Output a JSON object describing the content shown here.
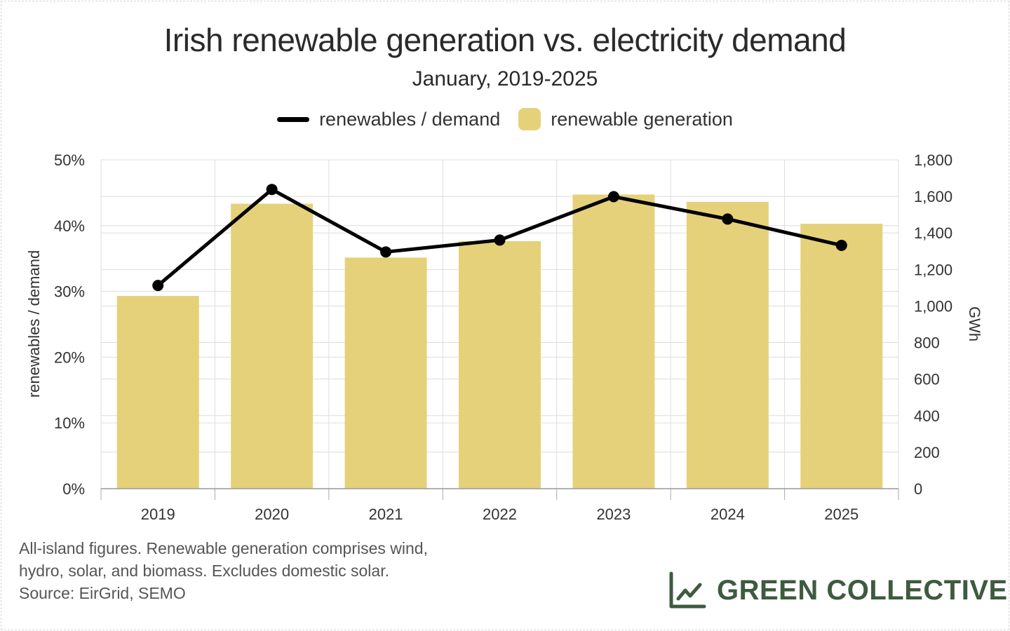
{
  "title": "Irish renewable generation vs. electricity demand",
  "subtitle": "January, 2019-2025",
  "legend": {
    "line_label": "renewables / demand",
    "bar_label": "renewable generation"
  },
  "footnote": {
    "line1": "All-island figures. Renewable generation comprises wind,",
    "line2": "hydro, solar, and biomass. Excludes domestic solar.",
    "line3": "Source: EirGrid, SEMO"
  },
  "brand": {
    "name": "GREEN COLLECTIVE",
    "icon": "line-chart-icon",
    "color": "#3e5a3f"
  },
  "colors": {
    "bar": "#e5d17a",
    "line": "#000000",
    "grid": "#dddddd"
  },
  "chart_data": {
    "type": "bar",
    "categories": [
      "2019",
      "2020",
      "2021",
      "2022",
      "2023",
      "2024",
      "2025"
    ],
    "series": [
      {
        "name": "renewable generation",
        "type": "bar",
        "axis": "right",
        "values": [
          1055,
          1560,
          1265,
          1355,
          1610,
          1570,
          1450
        ]
      },
      {
        "name": "renewables / demand",
        "type": "line",
        "axis": "left",
        "values": [
          30.9,
          45.5,
          36.0,
          37.8,
          44.4,
          41.0,
          37.0
        ]
      }
    ],
    "ylabel_left": "renewables / demand",
    "ylabel_right": "GWh",
    "ylim_left": [
      0,
      50
    ],
    "ylim_right": [
      0,
      1800
    ],
    "yticks_left": [
      "0%",
      "10%",
      "20%",
      "30%",
      "40%",
      "50%"
    ],
    "yticks_right": [
      "0",
      "200",
      "400",
      "600",
      "800",
      "1,000",
      "1,200",
      "1,400",
      "1,600",
      "1,800"
    ],
    "grid": true,
    "legend_position": "top-center"
  }
}
